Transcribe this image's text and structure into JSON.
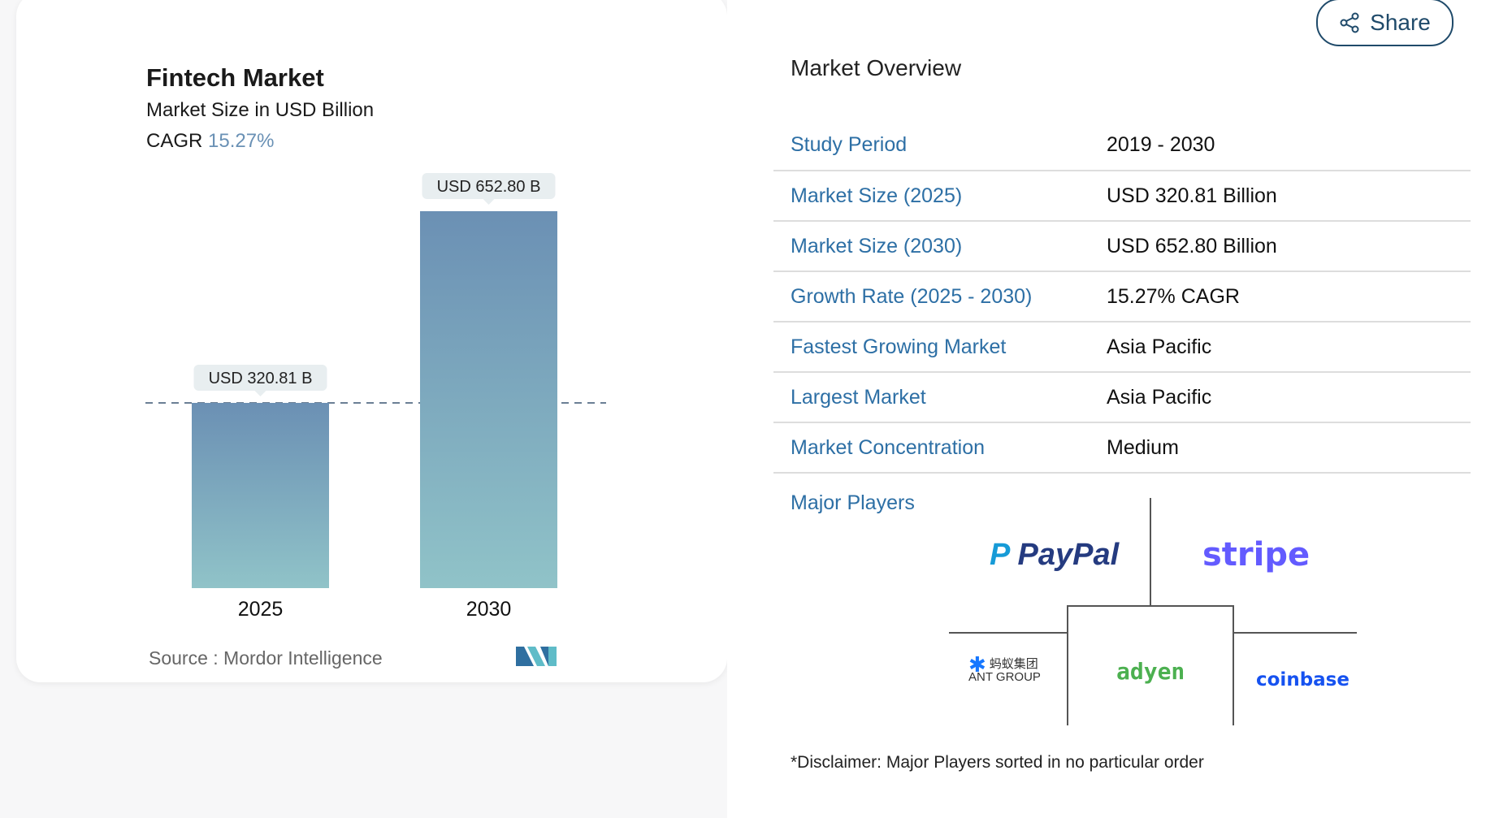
{
  "card": {
    "title": "Fintech Market",
    "subtitle": "Market Size in USD Billion",
    "cagr_label": "CAGR",
    "cagr_value": "15.27%",
    "source": "Source :  Mordor Intelligence",
    "logo_text": "MN"
  },
  "chart_data": {
    "type": "bar",
    "title": "Fintech Market",
    "subtitle": "Market Size in USD Billion",
    "categories": [
      "2025",
      "2030"
    ],
    "values": [
      320.81,
      652.8
    ],
    "data_labels": [
      "USD 320.81 B",
      "USD 652.80 B"
    ],
    "ylim": [
      0,
      652.8
    ],
    "grid": false,
    "reference_line": "dashed at 2025 value",
    "colors": {
      "bar_top": "#6b90b4",
      "bar_bottom": "#90c3c8",
      "label_bg": "#e8eef0"
    }
  },
  "share": {
    "label": "Share",
    "icon": "share-icon"
  },
  "overview": {
    "title": "Market Overview",
    "rows": [
      {
        "label": "Study Period",
        "value": "2019 - 2030"
      },
      {
        "label": "Market Size (2025)",
        "value": "USD 320.81 Billion"
      },
      {
        "label": "Market Size (2030)",
        "value": "USD 652.80 Billion"
      },
      {
        "label": "Growth Rate (2025 - 2030)",
        "value": "15.27% CAGR"
      },
      {
        "label": "Fastest Growing Market",
        "value": "Asia Pacific"
      },
      {
        "label": "Largest Market",
        "value": "Asia Pacific"
      },
      {
        "label": "Market Concentration",
        "value": "Medium"
      }
    ],
    "players_title": "Major Players",
    "players": [
      "PayPal",
      "stripe",
      "蚂蚁集团 ANT GROUP",
      "adyen",
      "coinbase"
    ],
    "disclaimer": "*Disclaimer: Major Players sorted in no particular order"
  }
}
